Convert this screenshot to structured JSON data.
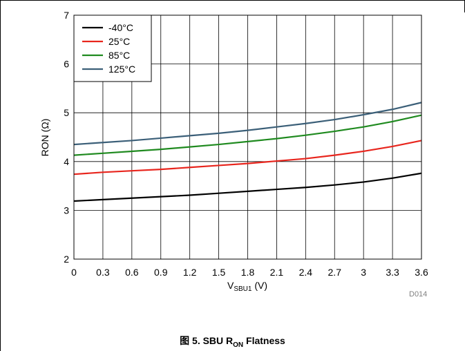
{
  "figure_id": "D014",
  "caption": {
    "prefix": "图 5. SBU R",
    "subscript": "ON",
    "suffix": " Flatness"
  },
  "chart_data": {
    "type": "line",
    "title": "",
    "xlabel": {
      "main": "V",
      "sub": "SBU1",
      "unit": " (V)"
    },
    "ylabel": "RON (Ω)",
    "xlim": [
      0,
      3.6
    ],
    "ylim": [
      2,
      7
    ],
    "xticks": [
      "0",
      "0.3",
      "0.6",
      "0.9",
      "1.2",
      "1.5",
      "1.8",
      "2.1",
      "2.4",
      "2.7",
      "3",
      "3.3",
      "3.6"
    ],
    "yticks": [
      "2",
      "3",
      "4",
      "5",
      "6",
      "7"
    ],
    "grid": true,
    "legend_position": "top-left",
    "x": [
      0,
      0.3,
      0.6,
      0.9,
      1.2,
      1.5,
      1.8,
      2.1,
      2.4,
      2.7,
      3.0,
      3.3,
      3.6
    ],
    "series": [
      {
        "name": "-40°C",
        "color": "#000000",
        "values": [
          3.19,
          3.22,
          3.25,
          3.28,
          3.31,
          3.35,
          3.39,
          3.43,
          3.47,
          3.52,
          3.58,
          3.66,
          3.76
        ]
      },
      {
        "name": "25°C",
        "color": "#e8251d",
        "values": [
          3.74,
          3.78,
          3.81,
          3.84,
          3.88,
          3.92,
          3.96,
          4.01,
          4.06,
          4.13,
          4.21,
          4.31,
          4.43
        ]
      },
      {
        "name": "85°C",
        "color": "#1f8a1f",
        "values": [
          4.13,
          4.17,
          4.21,
          4.25,
          4.3,
          4.35,
          4.41,
          4.47,
          4.54,
          4.62,
          4.71,
          4.82,
          4.95
        ]
      },
      {
        "name": "125°C",
        "color": "#3b5f78",
        "values": [
          4.35,
          4.39,
          4.43,
          4.48,
          4.53,
          4.58,
          4.64,
          4.71,
          4.78,
          4.86,
          4.96,
          5.07,
          5.21
        ]
      }
    ]
  }
}
